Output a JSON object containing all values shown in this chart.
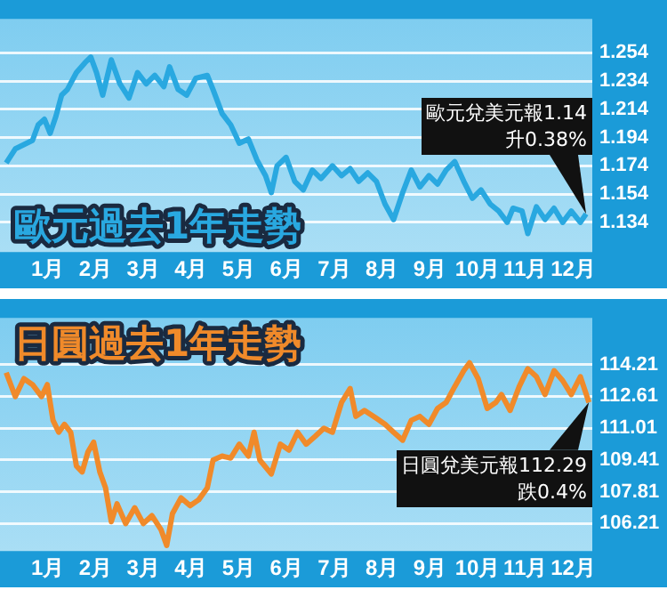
{
  "chart_data": [
    {
      "type": "line",
      "title": "歐元過去1年走勢",
      "x": [
        0.13,
        0.32,
        0.5,
        0.68,
        0.8,
        0.93,
        1.05,
        1.17,
        1.29,
        1.41,
        1.6,
        1.78,
        1.9,
        2.02,
        2.15,
        2.33,
        2.51,
        2.7,
        2.88,
        3.06,
        3.24,
        3.43,
        3.55,
        3.73,
        3.91,
        4.1,
        4.34,
        4.46,
        4.65,
        4.83,
        5.01,
        5.2,
        5.38,
        5.56,
        5.68,
        5.8,
        5.99,
        6.17,
        6.35,
        6.54,
        6.72,
        6.96,
        7.15,
        7.33,
        7.51,
        7.7,
        7.88,
        8.06,
        8.24,
        8.43,
        8.61,
        8.79,
        8.98,
        9.16,
        9.34,
        9.52,
        9.71,
        9.89,
        10.07,
        10.26,
        10.44,
        10.62,
        10.74,
        10.93,
        11.05,
        11.23,
        11.41,
        11.6,
        11.78,
        11.96,
        12.15,
        12.27
      ],
      "series": [
        {
          "color": "#29a8e0",
          "values": [
            1.176,
            1.186,
            1.189,
            1.192,
            1.203,
            1.207,
            1.197,
            1.209,
            1.224,
            1.228,
            1.24,
            1.247,
            1.251,
            1.24,
            1.224,
            1.249,
            1.232,
            1.222,
            1.24,
            1.232,
            1.238,
            1.23,
            1.244,
            1.228,
            1.224,
            1.236,
            1.238,
            1.228,
            1.211,
            1.203,
            1.19,
            1.193,
            1.178,
            1.167,
            1.155,
            1.174,
            1.18,
            1.163,
            1.157,
            1.171,
            1.165,
            1.174,
            1.167,
            1.172,
            1.163,
            1.169,
            1.163,
            1.147,
            1.136,
            1.155,
            1.171,
            1.159,
            1.167,
            1.161,
            1.171,
            1.177,
            1.163,
            1.151,
            1.157,
            1.147,
            1.142,
            1.134,
            1.144,
            1.142,
            1.126,
            1.145,
            1.136,
            1.144,
            1.134,
            1.142,
            1.134,
            1.14
          ]
        }
      ],
      "xlim": [
        0,
        12.4
      ],
      "xticks": [
        {
          "value": 1,
          "label": "1月"
        },
        {
          "value": 2,
          "label": "2月"
        },
        {
          "value": 3,
          "label": "3月"
        },
        {
          "value": 4,
          "label": "4月"
        },
        {
          "value": 5,
          "label": "5月"
        },
        {
          "value": 6,
          "label": "6月"
        },
        {
          "value": 7,
          "label": "7月"
        },
        {
          "value": 8,
          "label": "8月"
        },
        {
          "value": 9,
          "label": "9月"
        },
        {
          "value": 10,
          "label": "10月"
        },
        {
          "value": 11,
          "label": "11月"
        },
        {
          "value": 12,
          "label": "12月"
        }
      ],
      "ylim": [
        1.113,
        1.278
      ],
      "yticks": [
        1.134,
        1.154,
        1.174,
        1.194,
        1.214,
        1.234,
        1.254
      ],
      "grid": "y",
      "annotations": [
        "歐元兌美元報1.14",
        "升0.38%"
      ]
    },
    {
      "type": "line",
      "title": "日圓過去1年走勢",
      "x": [
        0.13,
        0.32,
        0.5,
        0.68,
        0.87,
        0.99,
        1.11,
        1.23,
        1.35,
        1.48,
        1.6,
        1.72,
        1.84,
        1.96,
        2.09,
        2.21,
        2.33,
        2.45,
        2.63,
        2.82,
        3.0,
        3.18,
        3.37,
        3.49,
        3.61,
        3.79,
        3.98,
        4.16,
        4.34,
        4.46,
        4.65,
        4.83,
        5.01,
        5.2,
        5.32,
        5.44,
        5.68,
        5.87,
        6.05,
        6.23,
        6.41,
        6.6,
        6.78,
        6.96,
        7.15,
        7.33,
        7.45,
        7.63,
        7.88,
        8.06,
        8.24,
        8.43,
        8.61,
        8.79,
        8.98,
        9.16,
        9.34,
        9.52,
        9.71,
        9.83,
        10.01,
        10.2,
        10.38,
        10.5,
        10.68,
        10.87,
        11.05,
        11.23,
        11.41,
        11.6,
        11.78,
        11.96,
        12.15,
        12.33
      ],
      "series": [
        {
          "color": "#f08a2a",
          "values": [
            113.8,
            112.6,
            113.5,
            113.2,
            112.6,
            113.2,
            111.4,
            110.8,
            111.2,
            110.8,
            109.1,
            108.8,
            109.8,
            110.3,
            108.8,
            108.0,
            106.3,
            107.2,
            106.2,
            107.0,
            106.2,
            106.6,
            105.9,
            105.1,
            106.7,
            107.5,
            107.1,
            107.4,
            108.0,
            109.4,
            109.6,
            109.5,
            110.2,
            109.6,
            110.8,
            109.4,
            108.7,
            110.2,
            109.9,
            110.8,
            110.2,
            110.6,
            111.0,
            110.8,
            112.3,
            113.0,
            111.6,
            111.9,
            111.5,
            111.2,
            110.8,
            110.4,
            111.4,
            111.6,
            111.2,
            112.0,
            112.3,
            113.1,
            113.9,
            114.3,
            113.5,
            112.0,
            112.3,
            112.7,
            111.9,
            113.1,
            114.0,
            113.6,
            112.7,
            113.9,
            113.4,
            112.7,
            113.6,
            112.3
          ]
        }
      ],
      "xlim": [
        0,
        12.4
      ],
      "xticks": [
        {
          "value": 1,
          "label": "1月"
        },
        {
          "value": 2,
          "label": "2月"
        },
        {
          "value": 3,
          "label": "3月"
        },
        {
          "value": 4,
          "label": "4月"
        },
        {
          "value": 5,
          "label": "5月"
        },
        {
          "value": 6,
          "label": "6月"
        },
        {
          "value": 7,
          "label": "7月"
        },
        {
          "value": 8,
          "label": "8月"
        },
        {
          "value": 9,
          "label": "9月"
        },
        {
          "value": 10,
          "label": "10月"
        },
        {
          "value": 11,
          "label": "11月"
        },
        {
          "value": 12,
          "label": "12月"
        }
      ],
      "ylim": [
        104.82,
        116.56
      ],
      "yticks": [
        106.21,
        107.81,
        109.41,
        111.01,
        112.61,
        114.21
      ],
      "grid": "y",
      "annotations": [
        "日圓兌美元報112.29",
        "跌0.4%"
      ]
    }
  ]
}
